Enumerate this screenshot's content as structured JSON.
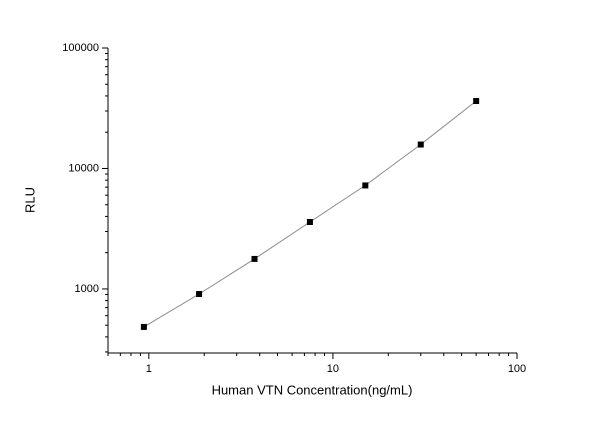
{
  "chart_data": {
    "type": "scatter",
    "x_label": "Human VTN Concentration(ng/mL)",
    "y_label": "RLU",
    "x": [
      0.94,
      1.875,
      3.75,
      7.5,
      15,
      30,
      60
    ],
    "series": [
      {
        "color": "#000000",
        "values": [
          484,
          908,
          1775,
          3595,
          7230,
          15800,
          36300
        ]
      }
    ],
    "xscale": "log",
    "yscale": "log",
    "xlim": [
      0.6,
      100
    ],
    "ylim": [
      294,
      100000
    ],
    "xticks": [
      1,
      10,
      100
    ],
    "yticks": [
      1000,
      10000,
      100000
    ],
    "line_color": "#888888"
  }
}
